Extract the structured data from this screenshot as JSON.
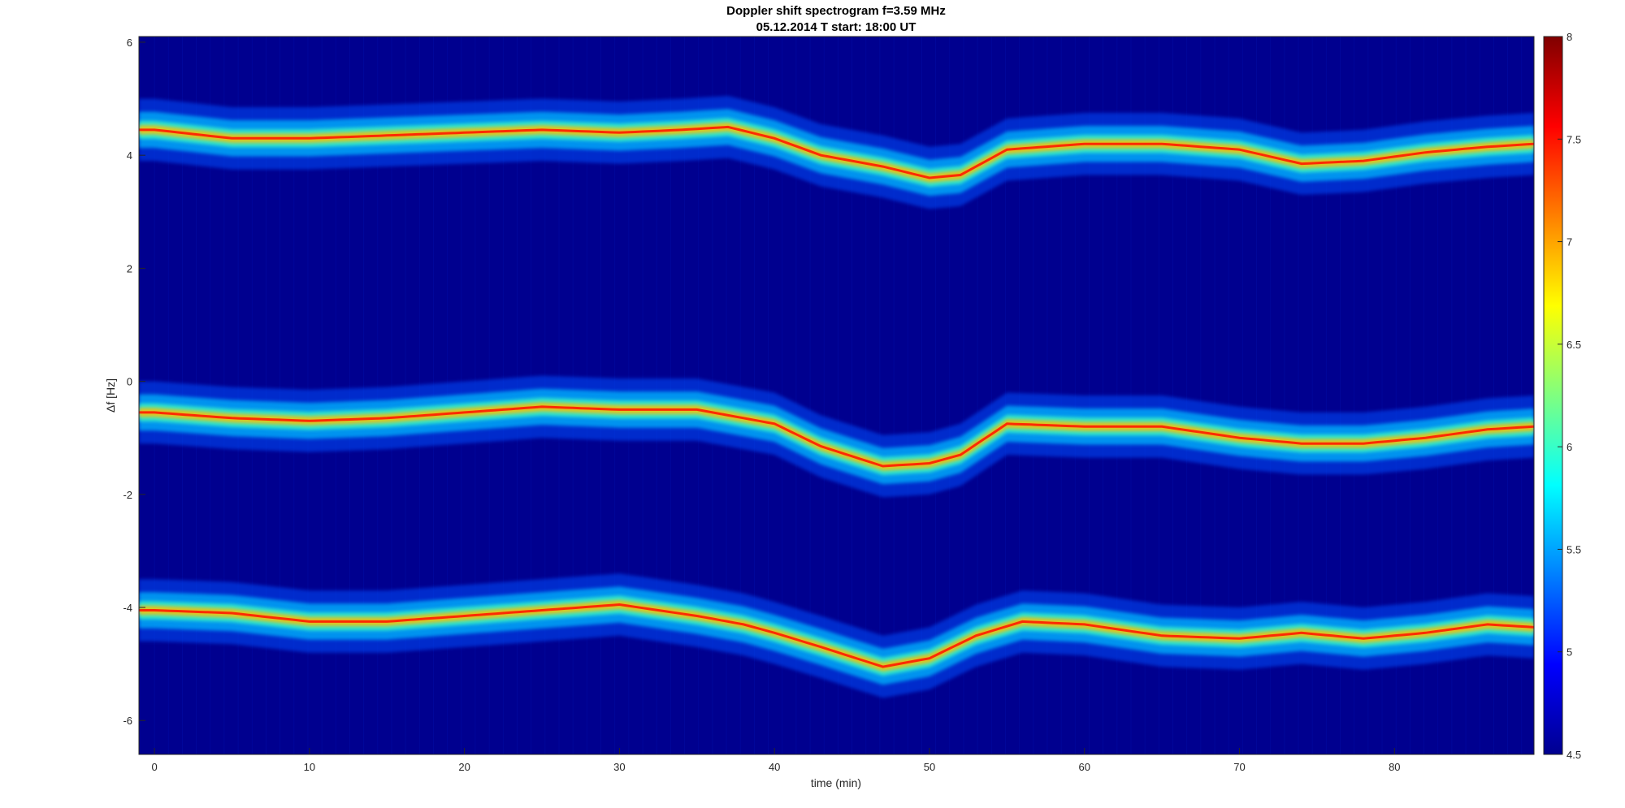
{
  "chart_data": {
    "type": "heatmap",
    "title": "Doppler shift spectrogram f=3.59 MHz",
    "subtitle": "05.12.2014   T start: 18:00 UT",
    "xlabel": "time (min)",
    "ylabel": "Δf [Hz]",
    "xlim": [
      -1,
      89
    ],
    "ylim": [
      -6.6,
      6.1
    ],
    "xticks": [
      0,
      10,
      20,
      30,
      40,
      50,
      60,
      70,
      80
    ],
    "yticks": [
      -6,
      -4,
      -2,
      0,
      2,
      4,
      6
    ],
    "colorbar": {
      "colormap": "jet",
      "clim": [
        4.5,
        8
      ],
      "ticks": [
        4.5,
        5,
        5.5,
        6,
        6.5,
        7,
        7.5,
        8
      ],
      "tick_labels": [
        "4.5",
        "5",
        "5.5",
        "6",
        "6.5",
        "7",
        "7.5",
        "8"
      ],
      "placement": "right"
    },
    "grid": false,
    "series": [
      {
        "x": [
          0,
          5,
          10,
          15,
          20,
          25,
          30,
          34,
          37,
          40,
          43,
          47,
          50,
          52,
          55,
          60,
          65,
          70,
          74,
          78,
          82,
          86,
          89
        ],
        "y": [
          4.45,
          4.3,
          4.3,
          4.35,
          4.4,
          4.45,
          4.4,
          4.45,
          4.5,
          4.3,
          4.0,
          3.8,
          3.6,
          3.65,
          4.1,
          4.2,
          4.2,
          4.1,
          3.85,
          3.9,
          4.05,
          4.15,
          4.2
        ]
      },
      {
        "x": [
          0,
          5,
          10,
          15,
          20,
          25,
          30,
          35,
          38,
          40,
          43,
          47,
          50,
          52,
          55,
          60,
          65,
          70,
          74,
          78,
          82,
          86,
          89
        ],
        "y": [
          -0.55,
          -0.65,
          -0.7,
          -0.65,
          -0.55,
          -0.45,
          -0.5,
          -0.5,
          -0.65,
          -0.75,
          -1.15,
          -1.5,
          -1.45,
          -1.3,
          -0.75,
          -0.8,
          -0.8,
          -1.0,
          -1.1,
          -1.1,
          -1.0,
          -0.85,
          -0.8
        ]
      },
      {
        "x": [
          0,
          5,
          10,
          15,
          20,
          25,
          30,
          35,
          38,
          40,
          43,
          47,
          50,
          53,
          56,
          60,
          65,
          70,
          74,
          78,
          82,
          86,
          89
        ],
        "y": [
          -4.05,
          -4.1,
          -4.25,
          -4.25,
          -4.15,
          -4.05,
          -3.95,
          -4.15,
          -4.3,
          -4.45,
          -4.7,
          -5.05,
          -4.9,
          -4.5,
          -4.25,
          -4.3,
          -4.5,
          -4.55,
          -4.45,
          -4.55,
          -4.45,
          -4.3,
          -4.35
        ]
      }
    ]
  }
}
